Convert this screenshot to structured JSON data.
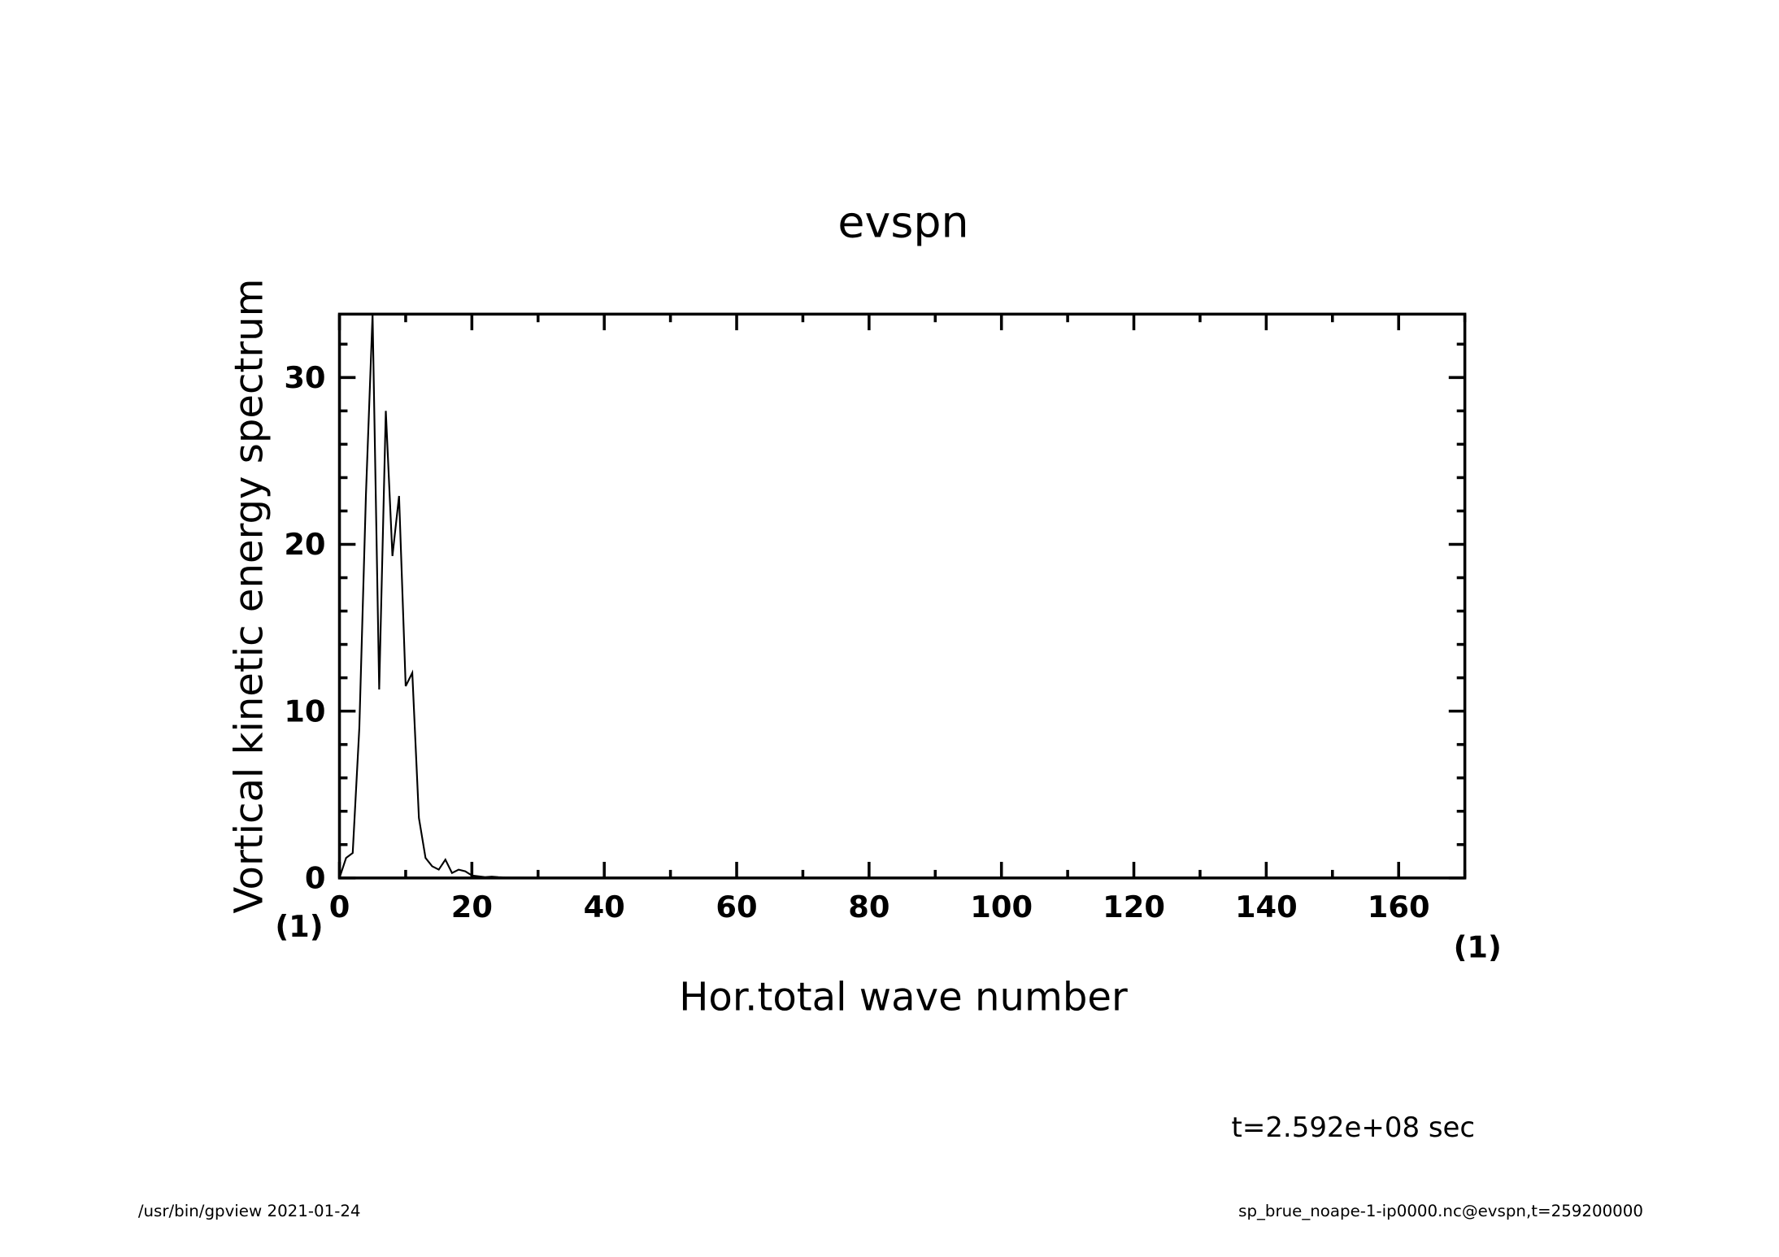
{
  "chart_data": {
    "type": "line",
    "title": "evspn",
    "x_label": "Hor.total wave number",
    "y_label": "Vortical kinetic energy spectrum",
    "x_unit": "(1)",
    "y_unit": "(1)",
    "annotation": "t=2.592e+08 sec",
    "footer_left": "/usr/bin/gpview  2021-01-24",
    "footer_right": "sp_brue_noape-1-ip0000.nc@evspn,t=259200000",
    "color": "#000000",
    "x": [
      0,
      1,
      2,
      3,
      4,
      5,
      6,
      7,
      8,
      9,
      10,
      11,
      12,
      13,
      14,
      15,
      16,
      17,
      18,
      19,
      20,
      21,
      22,
      23,
      24,
      25,
      26,
      27,
      28,
      29,
      30
    ],
    "values": [
      0,
      1.2,
      1.5,
      9,
      23,
      33.8,
      11.3,
      28,
      19.3,
      22.9,
      11.5,
      12.3,
      3.6,
      1.2,
      0.7,
      0.5,
      1.1,
      0.3,
      0.5,
      0.4,
      0.15,
      0.1,
      0.05,
      0.08,
      0.05,
      0.03,
      0.02,
      0.02,
      0.01,
      0.01,
      0
    ],
    "xlim": [
      0,
      170
    ],
    "ylim": [
      0,
      33.8
    ],
    "xticks": [
      0,
      20,
      40,
      60,
      80,
      100,
      120,
      140,
      160
    ],
    "yticks": [
      0,
      10,
      20,
      30
    ],
    "xminorticks": [
      10,
      30,
      50,
      70,
      90,
      110,
      130,
      150,
      170
    ],
    "yminorticks": [
      2,
      4,
      6,
      8,
      12,
      14,
      16,
      18,
      22,
      24,
      26,
      28,
      32
    ]
  }
}
